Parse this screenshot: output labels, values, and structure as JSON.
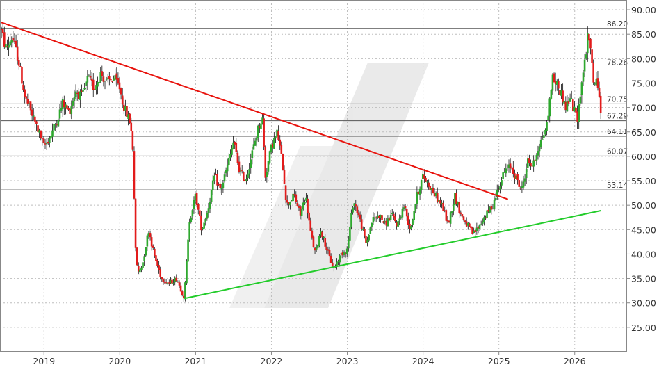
{
  "chart_data": {
    "type": "candlestick",
    "title": "",
    "xlabel": "",
    "ylabel": "",
    "ylim": [
      20,
      92
    ],
    "xlim": [
      2018.42,
      2026.69
    ],
    "grid": true,
    "y_axis_position": "right",
    "x_ticks": [
      {
        "x": 2019.0,
        "label": "2019"
      },
      {
        "x": 2020.0,
        "label": "2020"
      },
      {
        "x": 2021.0,
        "label": "2021"
      },
      {
        "x": 2022.0,
        "label": "2022"
      },
      {
        "x": 2023.0,
        "label": "2023"
      },
      {
        "x": 2024.0,
        "label": "2024"
      },
      {
        "x": 2025.0,
        "label": "2025"
      },
      {
        "x": 2026.0,
        "label": "2026"
      }
    ],
    "y_ticks": [
      {
        "y": 25,
        "label": "25.00"
      },
      {
        "y": 30,
        "label": "30.00"
      },
      {
        "y": 35,
        "label": "35.00"
      },
      {
        "y": 40,
        "label": "40.00"
      },
      {
        "y": 45,
        "label": "45.00"
      },
      {
        "y": 50,
        "label": "50.00"
      },
      {
        "y": 55,
        "label": "55.00"
      },
      {
        "y": 60,
        "label": "60.00"
      },
      {
        "y": 65,
        "label": "65.00"
      },
      {
        "y": 70,
        "label": "70.00"
      },
      {
        "y": 75,
        "label": "75.00"
      },
      {
        "y": 80,
        "label": "80.00"
      },
      {
        "y": 85,
        "label": "85.00"
      },
      {
        "y": 90,
        "label": "90.00"
      }
    ],
    "levels": [
      {
        "y": 86.2,
        "label": "86.20"
      },
      {
        "y": 78.26,
        "label": "78.26"
      },
      {
        "y": 70.75,
        "label": "70.75"
      },
      {
        "y": 67.29,
        "label": "67.29"
      },
      {
        "y": 64.11,
        "label": "64.11"
      },
      {
        "y": 60.07,
        "label": "60.07"
      },
      {
        "y": 53.14,
        "label": "53.14"
      }
    ],
    "trendlines": [
      {
        "color": "#e8120c",
        "x1": 2018.42,
        "y1": 87.5,
        "x2": 2025.12,
        "y2": 51.2
      },
      {
        "color": "#22cc2a",
        "x1": 2020.85,
        "y1": 30.9,
        "x2": 2026.35,
        "y2": 48.9
      }
    ],
    "up_color": "#2ea82e",
    "down_color": "#e21b1b",
    "price_path": [
      [
        2018.42,
        86.5
      ],
      [
        2018.5,
        82.0
      ],
      [
        2018.58,
        84.5
      ],
      [
        2018.66,
        80.0
      ],
      [
        2018.75,
        72.0
      ],
      [
        2018.83,
        69.0
      ],
      [
        2018.92,
        65.5
      ],
      [
        2019.0,
        62.0
      ],
      [
        2019.08,
        64.0
      ],
      [
        2019.16,
        67.0
      ],
      [
        2019.25,
        71.0
      ],
      [
        2019.33,
        69.0
      ],
      [
        2019.42,
        73.5
      ],
      [
        2019.5,
        72.0
      ],
      [
        2019.58,
        76.0
      ],
      [
        2019.66,
        74.0
      ],
      [
        2019.75,
        77.0
      ],
      [
        2019.83,
        75.0
      ],
      [
        2019.92,
        76.0
      ],
      [
        2020.0,
        74.0
      ],
      [
        2020.04,
        71.0
      ],
      [
        2020.08,
        69.0
      ],
      [
        2020.14,
        67.0
      ],
      [
        2020.18,
        60.0
      ],
      [
        2020.2,
        42.0
      ],
      [
        2020.24,
        36.0
      ],
      [
        2020.3,
        38.0
      ],
      [
        2020.38,
        45.0
      ],
      [
        2020.45,
        40.0
      ],
      [
        2020.55,
        35.0
      ],
      [
        2020.65,
        34.0
      ],
      [
        2020.75,
        35.0
      ],
      [
        2020.85,
        31.0
      ],
      [
        2020.92,
        47.0
      ],
      [
        2021.0,
        52.0
      ],
      [
        2021.08,
        45.0
      ],
      [
        2021.16,
        49.0
      ],
      [
        2021.25,
        56.0
      ],
      [
        2021.33,
        53.0
      ],
      [
        2021.42,
        58.0
      ],
      [
        2021.5,
        63.0
      ],
      [
        2021.58,
        57.0
      ],
      [
        2021.66,
        55.0
      ],
      [
        2021.75,
        61.0
      ],
      [
        2021.83,
        66.0
      ],
      [
        2021.88,
        68.0
      ],
      [
        2021.92,
        56.0
      ],
      [
        2022.0,
        62.0
      ],
      [
        2022.08,
        65.0
      ],
      [
        2022.15,
        58.0
      ],
      [
        2022.2,
        50.0
      ],
      [
        2022.3,
        52.0
      ],
      [
        2022.38,
        48.0
      ],
      [
        2022.45,
        52.0
      ],
      [
        2022.52,
        44.0
      ],
      [
        2022.58,
        40.0
      ],
      [
        2022.65,
        45.0
      ],
      [
        2022.75,
        40.0
      ],
      [
        2022.82,
        37.0
      ],
      [
        2022.92,
        40.0
      ],
      [
        2023.0,
        41.0
      ],
      [
        2023.08,
        51.0
      ],
      [
        2023.15,
        48.0
      ],
      [
        2023.25,
        42.0
      ],
      [
        2023.33,
        47.0
      ],
      [
        2023.42,
        48.0
      ],
      [
        2023.5,
        46.0
      ],
      [
        2023.58,
        48.0
      ],
      [
        2023.66,
        46.0
      ],
      [
        2023.75,
        50.0
      ],
      [
        2023.83,
        45.0
      ],
      [
        2023.92,
        52.0
      ],
      [
        2024.0,
        56.0
      ],
      [
        2024.08,
        54.0
      ],
      [
        2024.16,
        52.0
      ],
      [
        2024.25,
        50.0
      ],
      [
        2024.33,
        46.0
      ],
      [
        2024.42,
        52.0
      ],
      [
        2024.5,
        48.0
      ],
      [
        2024.58,
        46.0
      ],
      [
        2024.66,
        44.0
      ],
      [
        2024.75,
        46.0
      ],
      [
        2024.83,
        48.0
      ],
      [
        2024.92,
        50.0
      ],
      [
        2025.0,
        54.0
      ],
      [
        2025.08,
        57.0
      ],
      [
        2025.16,
        58.0
      ],
      [
        2025.24,
        55.0
      ],
      [
        2025.3,
        53.0
      ],
      [
        2025.38,
        59.0
      ],
      [
        2025.45,
        58.0
      ],
      [
        2025.52,
        62.0
      ],
      [
        2025.58,
        64.0
      ],
      [
        2025.64,
        67.0
      ],
      [
        2025.7,
        76.0
      ],
      [
        2025.76,
        75.0
      ],
      [
        2025.82,
        73.0
      ],
      [
        2025.88,
        70.0
      ],
      [
        2025.94,
        72.0
      ],
      [
        2026.0,
        69.0
      ],
      [
        2026.04,
        68.0
      ],
      [
        2026.08,
        74.0
      ],
      [
        2026.12,
        78.0
      ],
      [
        2026.16,
        83.0
      ],
      [
        2026.18,
        85.0
      ],
      [
        2026.22,
        80.0
      ],
      [
        2026.26,
        74.0
      ],
      [
        2026.3,
        76.0
      ],
      [
        2026.33,
        70.0
      ],
      [
        2026.35,
        68.5
      ]
    ]
  }
}
